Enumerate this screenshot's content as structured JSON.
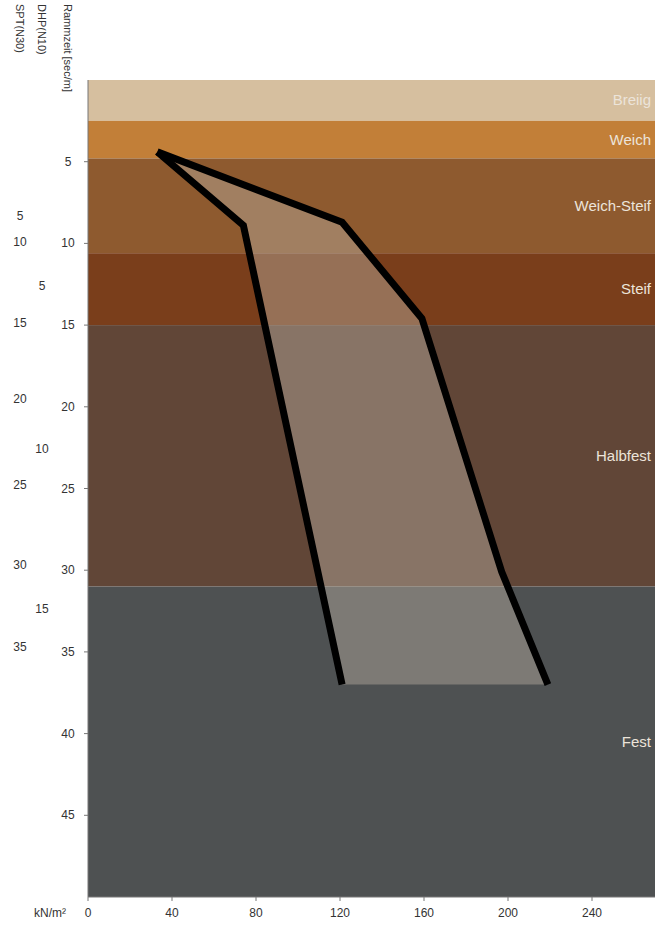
{
  "chart_data": {
    "type": "area",
    "xlabel": "kN/m²",
    "ylabel": "Rammzeit [sec/m]",
    "xlim": [
      0,
      270
    ],
    "xticks": [
      0,
      40,
      80,
      120,
      160,
      200,
      240
    ],
    "ylim": [
      0,
      50
    ],
    "yticks": [
      5,
      10,
      15,
      20,
      25,
      30,
      35,
      40,
      45
    ],
    "grid": false,
    "zones": [
      {
        "label": "Breiig",
        "from": 0,
        "to": 2.5,
        "color": "#d6bf9f"
      },
      {
        "label": "Weich",
        "from": 2.5,
        "to": 4.8,
        "color": "#c27f38"
      },
      {
        "label": "Weich-Steif",
        "from": 4.8,
        "to": 10.6,
        "color": "#8e5a2f"
      },
      {
        "label": "Steif",
        "from": 10.6,
        "to": 15,
        "color": "#7a3e1b"
      },
      {
        "label": "Halbfest",
        "from": 15,
        "to": 31,
        "color": "#614637"
      },
      {
        "label": "Fest",
        "from": 31,
        "to": 50,
        "color": "#4e5152"
      }
    ],
    "secondary_axes": [
      {
        "title": "DHP(N10)",
        "ticks": [
          {
            "value": 12.6,
            "label": "5"
          },
          {
            "value": 22.6,
            "label": "10"
          },
          {
            "value": 32.4,
            "label": "15"
          }
        ]
      },
      {
        "title": "SPT(N30)",
        "ticks": [
          {
            "value": 8.3,
            "label": "5"
          },
          {
            "value": 9.9,
            "label": "10"
          },
          {
            "value": 14.9,
            "label": "15"
          },
          {
            "value": 19.5,
            "label": "20"
          },
          {
            "value": 24.8,
            "label": "25"
          },
          {
            "value": 29.7,
            "label": "30"
          },
          {
            "value": 34.7,
            "label": "35"
          }
        ]
      }
    ],
    "series": [
      {
        "color": "#000000",
        "x": [
          33,
          74,
          121
        ],
        "values": [
          4.4,
          8.9,
          37
        ]
      },
      {
        "color": "#000000",
        "x": [
          33,
          121,
          159,
          197,
          219
        ],
        "values": [
          4.4,
          8.7,
          14.6,
          30.1,
          37
        ]
      }
    ]
  }
}
